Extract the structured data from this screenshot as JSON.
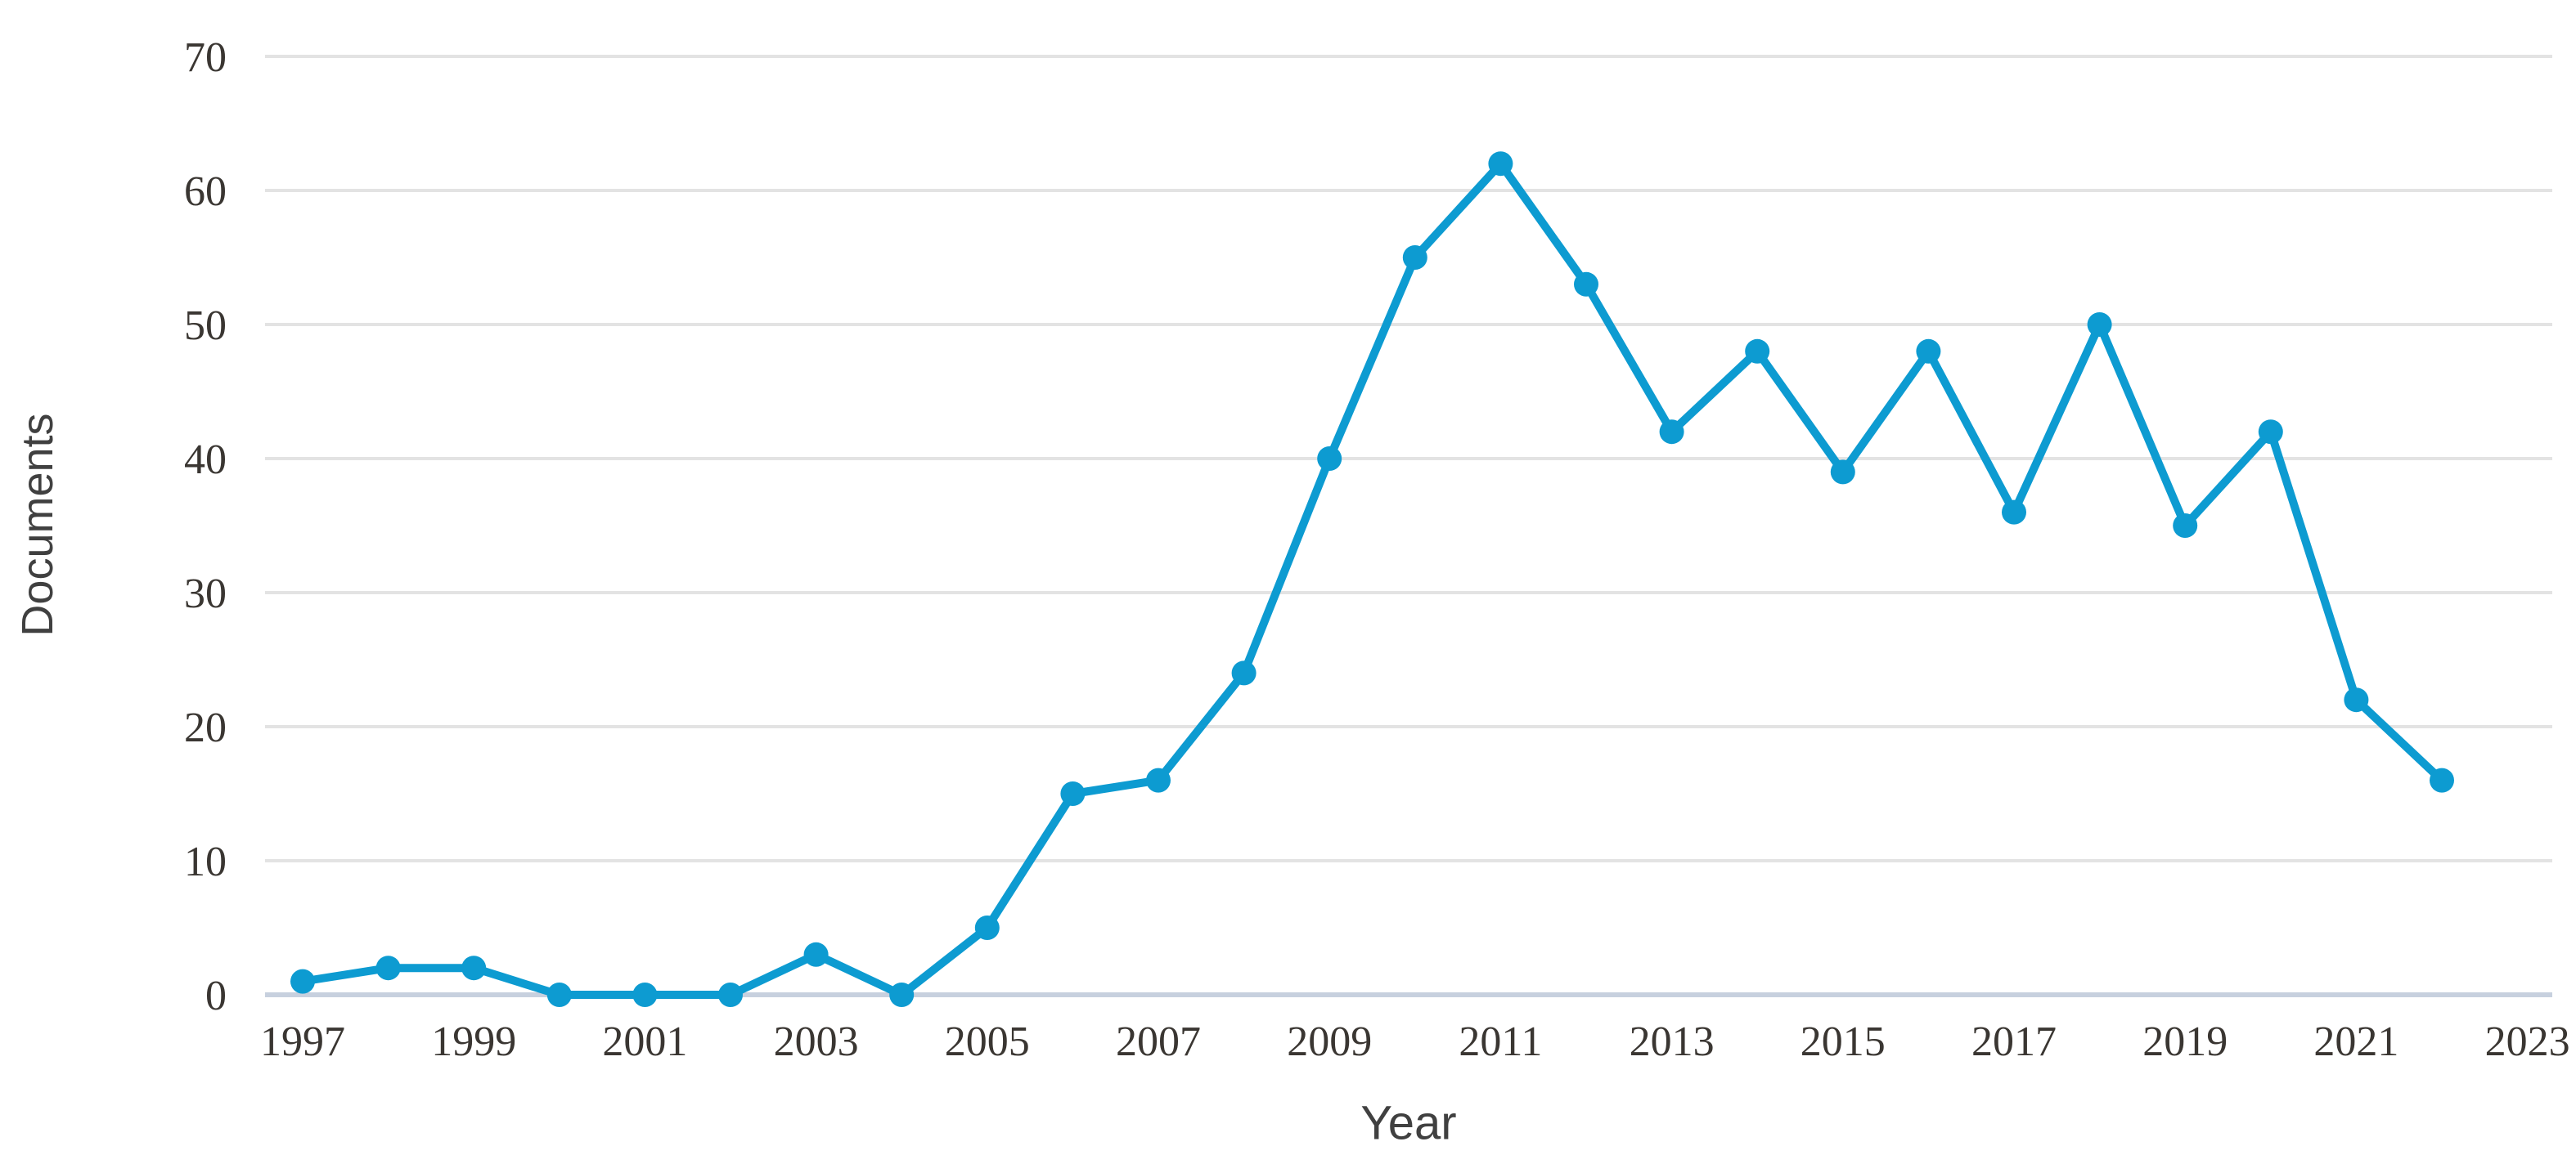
{
  "chart_data": {
    "type": "line",
    "title": "",
    "xlabel": "Year",
    "ylabel": "Documents",
    "x": [
      1997,
      1998,
      1999,
      2000,
      2001,
      2002,
      2003,
      2004,
      2005,
      2006,
      2007,
      2008,
      2009,
      2010,
      2011,
      2012,
      2013,
      2014,
      2015,
      2016,
      2017,
      2018,
      2019,
      2020,
      2021,
      2022
    ],
    "series": [
      {
        "name": "Documents",
        "values": [
          1,
          2,
          2,
          0,
          0,
          0,
          3,
          0,
          5,
          15,
          16,
          24,
          40,
          55,
          62,
          53,
          42,
          48,
          39,
          48,
          36,
          50,
          35,
          42,
          22,
          16
        ]
      }
    ],
    "ylim": [
      0,
      70
    ],
    "yticks": [
      0,
      10,
      20,
      30,
      40,
      50,
      60,
      70
    ],
    "xtick_labels": [
      1997,
      1999,
      2001,
      2003,
      2005,
      2007,
      2009,
      2011,
      2013,
      2015,
      2017,
      2019,
      2021,
      2023
    ],
    "grid": "horizontal",
    "legend": "none",
    "marker": "circle"
  },
  "style": {
    "line_color": "#0d9bd1",
    "grid_color": "#e3e3e3",
    "axis_line_color": "#c7d0de",
    "tick_label_color": "#3a3632",
    "axis_title_color": "#404040",
    "background": "#ffffff"
  }
}
